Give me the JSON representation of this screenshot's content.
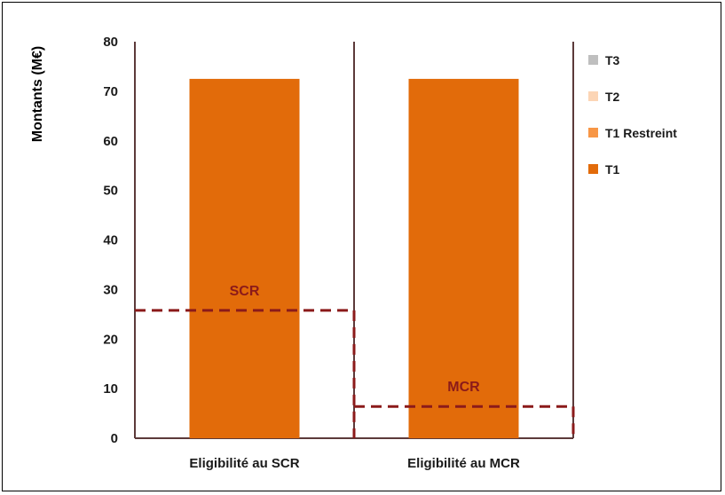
{
  "chart_data": {
    "type": "bar",
    "ylabel": "Montants (M€)",
    "ylim": [
      0,
      80
    ],
    "yticks": [
      0,
      10,
      20,
      30,
      40,
      50,
      60,
      70,
      80
    ],
    "categories": [
      "Eligibilité au SCR",
      "Eligibilité au MCR"
    ],
    "series": [
      {
        "name": "T1",
        "values": [
          72.5,
          72.5
        ],
        "color": "#e26b0a"
      },
      {
        "name": "T1 Restreint",
        "values": [
          0,
          0
        ],
        "color": "#f79646"
      },
      {
        "name": "T2",
        "values": [
          0,
          0
        ],
        "color": "#fcd5b5"
      },
      {
        "name": "T3",
        "values": [
          0,
          0
        ],
        "color": "#bfbfbf"
      }
    ],
    "legend_order": [
      "T3",
      "T2",
      "T1 Restreint",
      "T1"
    ],
    "legend_position": "right",
    "annotations": [
      {
        "label": "SCR",
        "value": 25.8,
        "category_index": 0,
        "color": "#8b1a1a",
        "style": "dashed"
      },
      {
        "label": "MCR",
        "value": 6.4,
        "category_index": 1,
        "color": "#8b1a1a",
        "style": "dashed"
      }
    ],
    "grid": false
  }
}
